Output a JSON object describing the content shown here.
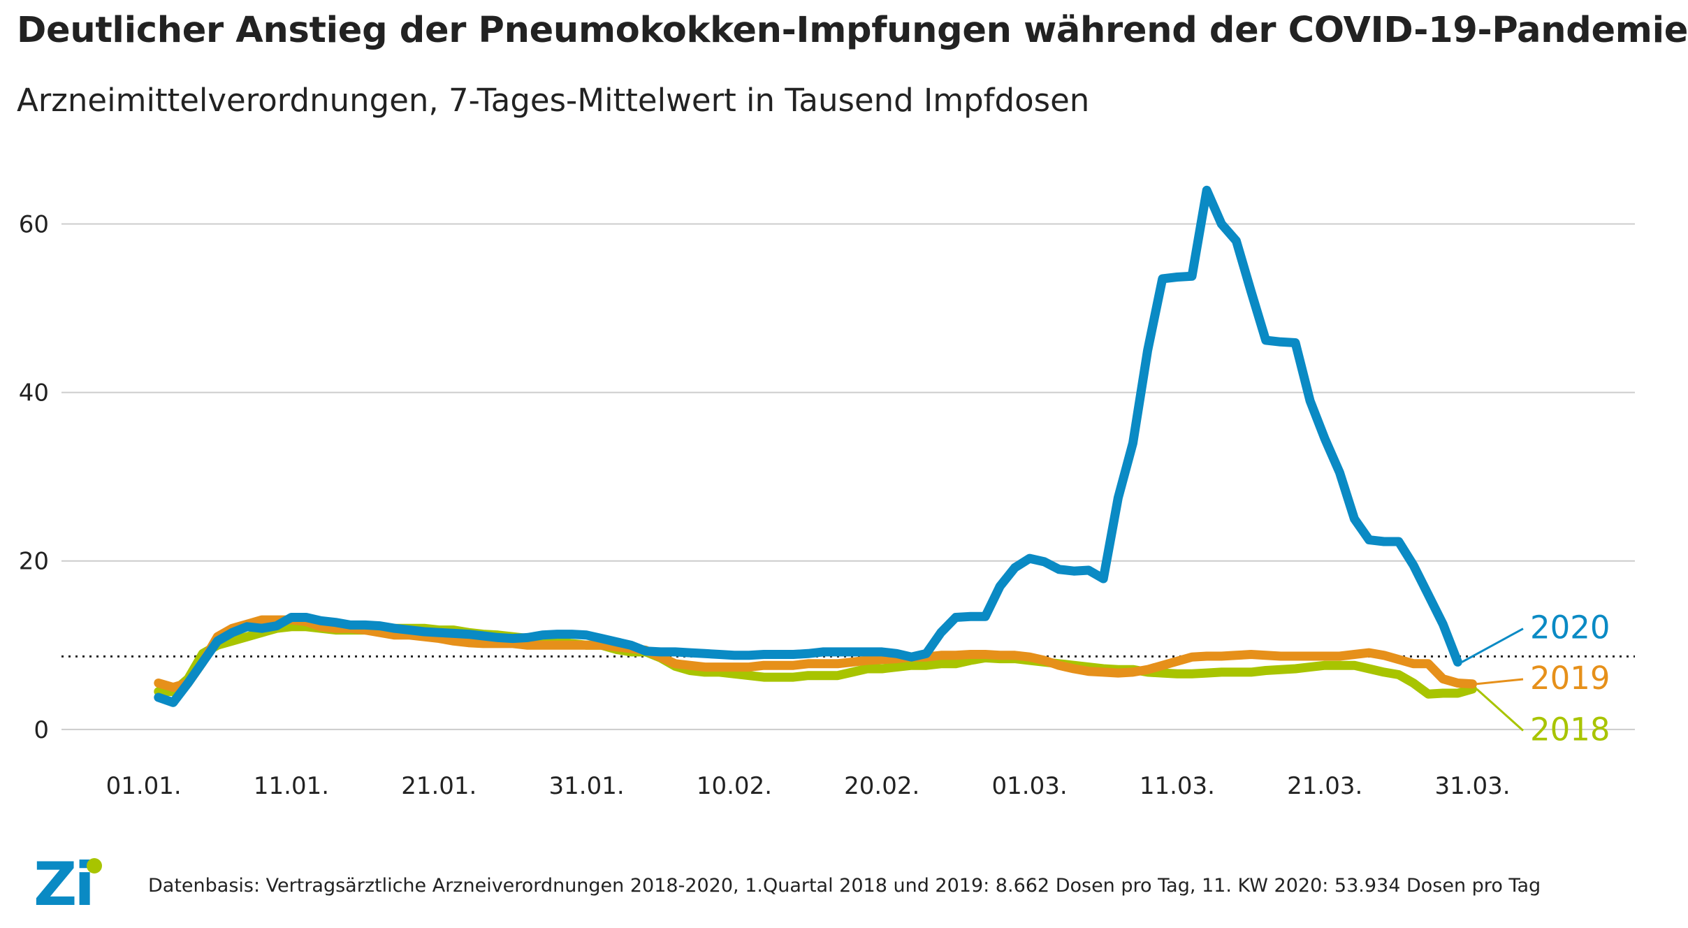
{
  "title": "Deutlicher Anstieg der Pneumokokken-Impfungen während der COVID-19-Pandemie",
  "subtitle": "Arzneimittelverordnungen, 7-Tages-Mittelwert in Tausend Impfdosen",
  "footer": "Datenbasis: Vertragsärztliche Arzneiverordnungen 2018-2020, 1.Quartal 2018 und 2019: 8.662 Dosen pro Tag, 11. KW 2020: 53.934 Dosen pro Tag",
  "logo": {
    "text": "Zi",
    "icon": "zi-logo-icon"
  },
  "colors": {
    "2020": "#0a8ac4",
    "2019": "#e6901a",
    "2018": "#a8c400",
    "grid": "#cccccc",
    "reference": "#222222"
  },
  "chart_data": {
    "type": "line",
    "title": "Deutlicher Anstieg der Pneumokokken-Impfungen während der COVID-19-Pandemie",
    "subtitle": "Arzneimittelverordnungen, 7-Tages-Mittelwert in Tausend Impfdosen",
    "xlabel": "",
    "ylabel": "",
    "ylim": [
      -3,
      70
    ],
    "xlim": [
      -5,
      101
    ],
    "yticks": [
      0,
      20,
      40,
      60
    ],
    "xticks": [
      {
        "x": 0,
        "label": "01.01."
      },
      {
        "x": 10,
        "label": "11.01."
      },
      {
        "x": 20,
        "label": "21.01."
      },
      {
        "x": 30,
        "label": "31.01."
      },
      {
        "x": 40,
        "label": "10.02."
      },
      {
        "x": 50,
        "label": "20.02."
      },
      {
        "x": 60,
        "label": "01.03."
      },
      {
        "x": 70,
        "label": "11.03."
      },
      {
        "x": 80,
        "label": "21.03."
      },
      {
        "x": 90,
        "label": "31.03."
      }
    ],
    "grid": true,
    "reference_line": {
      "y": 8.662
    },
    "series": [
      {
        "name": "2018",
        "points": [
          [
            1,
            4.5
          ],
          [
            2,
            4.5
          ],
          [
            3,
            6
          ],
          [
            4,
            9
          ],
          [
            5,
            10
          ],
          [
            6,
            10.5
          ],
          [
            7,
            11
          ],
          [
            8,
            11.5
          ],
          [
            9,
            12
          ],
          [
            10,
            12.2
          ],
          [
            11,
            12.2
          ],
          [
            12,
            12
          ],
          [
            13,
            11.8
          ],
          [
            14,
            11.8
          ],
          [
            15,
            11.8
          ],
          [
            16,
            11.8
          ],
          [
            17,
            12
          ],
          [
            18,
            12
          ],
          [
            19,
            12
          ],
          [
            20,
            11.8
          ],
          [
            21,
            11.8
          ],
          [
            22,
            11.5
          ],
          [
            23,
            11.3
          ],
          [
            24,
            11.2
          ],
          [
            25,
            11
          ],
          [
            26,
            10.8
          ],
          [
            27,
            10.6
          ],
          [
            28,
            10.4
          ],
          [
            29,
            10.2
          ],
          [
            30,
            10
          ],
          [
            31,
            10
          ],
          [
            32,
            9.5
          ],
          [
            33,
            9.2
          ],
          [
            34,
            9.2
          ],
          [
            35,
            8.5
          ],
          [
            36,
            7.5
          ],
          [
            37,
            7
          ],
          [
            38,
            6.8
          ],
          [
            39,
            6.8
          ],
          [
            40,
            6.6
          ],
          [
            41,
            6.4
          ],
          [
            42,
            6.2
          ],
          [
            43,
            6.2
          ],
          [
            44,
            6.2
          ],
          [
            45,
            6.4
          ],
          [
            46,
            6.4
          ],
          [
            47,
            6.4
          ],
          [
            48,
            6.8
          ],
          [
            49,
            7.2
          ],
          [
            50,
            7.2
          ],
          [
            51,
            7.4
          ],
          [
            52,
            7.6
          ],
          [
            53,
            7.6
          ],
          [
            54,
            7.8
          ],
          [
            55,
            7.8
          ],
          [
            56,
            8.2
          ],
          [
            57,
            8.5
          ],
          [
            58,
            8.4
          ],
          [
            59,
            8.4
          ],
          [
            60,
            8.2
          ],
          [
            61,
            8
          ],
          [
            62,
            7.8
          ],
          [
            63,
            7.6
          ],
          [
            64,
            7.4
          ],
          [
            65,
            7.2
          ],
          [
            66,
            7.1
          ],
          [
            67,
            7.1
          ],
          [
            68,
            6.8
          ],
          [
            69,
            6.7
          ],
          [
            70,
            6.6
          ],
          [
            71,
            6.6
          ],
          [
            72,
            6.7
          ],
          [
            73,
            6.8
          ],
          [
            74,
            6.8
          ],
          [
            75,
            6.8
          ],
          [
            76,
            7
          ],
          [
            77,
            7.1
          ],
          [
            78,
            7.2
          ],
          [
            79,
            7.4
          ],
          [
            80,
            7.6
          ],
          [
            81,
            7.6
          ],
          [
            82,
            7.6
          ],
          [
            83,
            7.2
          ],
          [
            84,
            6.8
          ],
          [
            85,
            6.5
          ],
          [
            86,
            5.5
          ],
          [
            87,
            4.2
          ],
          [
            88,
            4.3
          ],
          [
            89,
            4.3
          ],
          [
            90,
            4.8
          ]
        ]
      },
      {
        "name": "2019",
        "points": [
          [
            1,
            5.5
          ],
          [
            2,
            5
          ],
          [
            3,
            5.5
          ],
          [
            4,
            8
          ],
          [
            5,
            11
          ],
          [
            6,
            12
          ],
          [
            7,
            12.5
          ],
          [
            8,
            13
          ],
          [
            9,
            13
          ],
          [
            10,
            13
          ],
          [
            11,
            12.8
          ],
          [
            12,
            12.2
          ],
          [
            13,
            12
          ],
          [
            14,
            12
          ],
          [
            15,
            11.8
          ],
          [
            16,
            11.5
          ],
          [
            17,
            11.2
          ],
          [
            18,
            11.2
          ],
          [
            19,
            11
          ],
          [
            20,
            10.8
          ],
          [
            21,
            10.5
          ],
          [
            22,
            10.3
          ],
          [
            23,
            10.2
          ],
          [
            24,
            10.2
          ],
          [
            25,
            10.2
          ],
          [
            26,
            10
          ],
          [
            27,
            10
          ],
          [
            28,
            10
          ],
          [
            29,
            10
          ],
          [
            30,
            10
          ],
          [
            31,
            10
          ],
          [
            32,
            9.8
          ],
          [
            33,
            9.6
          ],
          [
            34,
            9.4
          ],
          [
            35,
            8.6
          ],
          [
            36,
            7.8
          ],
          [
            37,
            7.6
          ],
          [
            38,
            7.4
          ],
          [
            39,
            7.4
          ],
          [
            40,
            7.4
          ],
          [
            41,
            7.4
          ],
          [
            42,
            7.6
          ],
          [
            43,
            7.6
          ],
          [
            44,
            7.6
          ],
          [
            45,
            7.8
          ],
          [
            46,
            7.8
          ],
          [
            47,
            7.8
          ],
          [
            48,
            8
          ],
          [
            49,
            8.2
          ],
          [
            50,
            8.3
          ],
          [
            51,
            8.4
          ],
          [
            52,
            8.6
          ],
          [
            53,
            8.6
          ],
          [
            54,
            8.8
          ],
          [
            55,
            8.8
          ],
          [
            56,
            8.9
          ],
          [
            57,
            8.9
          ],
          [
            58,
            8.8
          ],
          [
            59,
            8.8
          ],
          [
            60,
            8.6
          ],
          [
            61,
            8.2
          ],
          [
            62,
            7.6
          ],
          [
            63,
            7.2
          ],
          [
            64,
            6.9
          ],
          [
            65,
            6.8
          ],
          [
            66,
            6.7
          ],
          [
            67,
            6.8
          ],
          [
            68,
            7.1
          ],
          [
            69,
            7.6
          ],
          [
            70,
            8.1
          ],
          [
            71,
            8.6
          ],
          [
            72,
            8.7
          ],
          [
            73,
            8.7
          ],
          [
            74,
            8.8
          ],
          [
            75,
            8.9
          ],
          [
            76,
            8.8
          ],
          [
            77,
            8.7
          ],
          [
            78,
            8.7
          ],
          [
            79,
            8.7
          ],
          [
            80,
            8.7
          ],
          [
            81,
            8.7
          ],
          [
            82,
            8.9
          ],
          [
            83,
            9.1
          ],
          [
            84,
            8.8
          ],
          [
            85,
            8.3
          ],
          [
            86,
            7.8
          ],
          [
            87,
            7.8
          ],
          [
            88,
            6
          ],
          [
            89,
            5.5
          ],
          [
            90,
            5.4
          ]
        ]
      },
      {
        "name": "2020",
        "points": [
          [
            1,
            3.8
          ],
          [
            2,
            3.2
          ],
          [
            3,
            5.5
          ],
          [
            4,
            8
          ],
          [
            5,
            10.5
          ],
          [
            6,
            11.5
          ],
          [
            7,
            12.2
          ],
          [
            8,
            12
          ],
          [
            9,
            12.3
          ],
          [
            10,
            13.3
          ],
          [
            11,
            13.3
          ],
          [
            12,
            12.9
          ],
          [
            13,
            12.7
          ],
          [
            14,
            12.4
          ],
          [
            15,
            12.4
          ],
          [
            16,
            12.3
          ],
          [
            17,
            12
          ],
          [
            18,
            11.8
          ],
          [
            19,
            11.6
          ],
          [
            20,
            11.5
          ],
          [
            21,
            11.4
          ],
          [
            22,
            11.3
          ],
          [
            23,
            11.1
          ],
          [
            24,
            10.9
          ],
          [
            25,
            10.8
          ],
          [
            26,
            10.9
          ],
          [
            27,
            11.2
          ],
          [
            28,
            11.3
          ],
          [
            29,
            11.3
          ],
          [
            30,
            11.2
          ],
          [
            31,
            10.8
          ],
          [
            32,
            10.4
          ],
          [
            33,
            10
          ],
          [
            34,
            9.3
          ],
          [
            35,
            9.2
          ],
          [
            36,
            9.2
          ],
          [
            37,
            9.1
          ],
          [
            38,
            9
          ],
          [
            39,
            8.9
          ],
          [
            40,
            8.8
          ],
          [
            41,
            8.8
          ],
          [
            42,
            8.9
          ],
          [
            43,
            8.9
          ],
          [
            44,
            8.9
          ],
          [
            45,
            9
          ],
          [
            46,
            9.2
          ],
          [
            47,
            9.2
          ],
          [
            48,
            9.2
          ],
          [
            49,
            9.2
          ],
          [
            50,
            9.2
          ],
          [
            51,
            9
          ],
          [
            52,
            8.6
          ],
          [
            53,
            9
          ],
          [
            54,
            11.5
          ],
          [
            55,
            13.3
          ],
          [
            56,
            13.4
          ],
          [
            57,
            13.4
          ],
          [
            58,
            17
          ],
          [
            59,
            19.2
          ],
          [
            60,
            20.3
          ],
          [
            61,
            19.9
          ],
          [
            62,
            19
          ],
          [
            63,
            18.8
          ],
          [
            64,
            18.9
          ],
          [
            65,
            17.9
          ],
          [
            66,
            27.5
          ],
          [
            67,
            34
          ],
          [
            68,
            45
          ],
          [
            69,
            53.5
          ],
          [
            70,
            53.7
          ],
          [
            71,
            53.8
          ],
          [
            72,
            64
          ],
          [
            73,
            60
          ],
          [
            74,
            58
          ],
          [
            75,
            52
          ],
          [
            76,
            46.2
          ],
          [
            77,
            46
          ],
          [
            78,
            45.9
          ],
          [
            79,
            39
          ],
          [
            80,
            34.5
          ],
          [
            81,
            30.5
          ],
          [
            82,
            25
          ],
          [
            83,
            22.5
          ],
          [
            84,
            22.3
          ],
          [
            85,
            22.3
          ],
          [
            86,
            19.5
          ],
          [
            87,
            16
          ],
          [
            88,
            12.5
          ],
          [
            89,
            8
          ]
        ]
      }
    ],
    "series_labels": [
      {
        "name": "2020",
        "text": "2020"
      },
      {
        "name": "2019",
        "text": "2019"
      },
      {
        "name": "2018",
        "text": "2018"
      }
    ]
  }
}
